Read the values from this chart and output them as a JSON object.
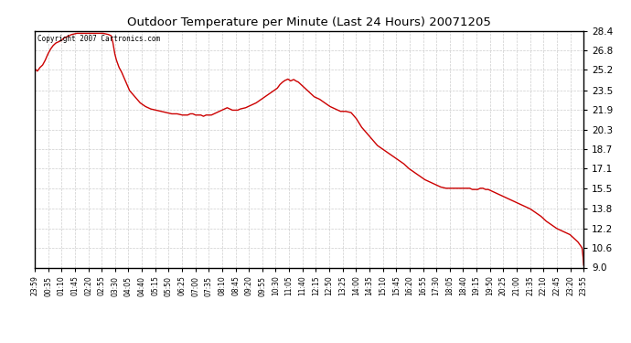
{
  "title": "Outdoor Temperature per Minute (Last 24 Hours) 20071205",
  "copyright_text": "Copyright 2007 Cartronics.com",
  "line_color": "#cc0000",
  "background_color": "#ffffff",
  "grid_color": "#c8c8c8",
  "ylim": [
    9.0,
    28.4
  ],
  "yticks": [
    9.0,
    10.6,
    12.2,
    13.8,
    15.5,
    17.1,
    18.7,
    20.3,
    21.9,
    23.5,
    25.2,
    26.8,
    28.4
  ],
  "xtick_labels": [
    "23:59",
    "00:35",
    "01:10",
    "01:45",
    "02:20",
    "02:55",
    "03:30",
    "04:05",
    "04:40",
    "05:15",
    "05:50",
    "06:25",
    "07:00",
    "07:35",
    "08:10",
    "08:45",
    "09:20",
    "09:55",
    "10:30",
    "11:05",
    "11:40",
    "12:15",
    "12:50",
    "13:25",
    "14:00",
    "14:35",
    "15:10",
    "15:45",
    "16:20",
    "16:55",
    "17:30",
    "18:05",
    "18:40",
    "19:15",
    "19:50",
    "20:25",
    "21:00",
    "21:35",
    "22:10",
    "22:45",
    "23:20",
    "23:55"
  ],
  "curve_data": [
    [
      0,
      25.3
    ],
    [
      5,
      25.1
    ],
    [
      10,
      25.4
    ],
    [
      15,
      25.6
    ],
    [
      20,
      26.0
    ],
    [
      25,
      26.5
    ],
    [
      30,
      26.9
    ],
    [
      35,
      27.2
    ],
    [
      40,
      27.4
    ],
    [
      45,
      27.5
    ],
    [
      50,
      27.6
    ],
    [
      55,
      27.8
    ],
    [
      60,
      27.9
    ],
    [
      65,
      28.0
    ],
    [
      70,
      28.1
    ],
    [
      80,
      28.2
    ],
    [
      90,
      28.2
    ],
    [
      100,
      28.2
    ],
    [
      110,
      28.2
    ],
    [
      120,
      28.2
    ],
    [
      130,
      28.2
    ],
    [
      140,
      28.1
    ],
    [
      145,
      28.0
    ],
    [
      148,
      27.5
    ],
    [
      150,
      27.0
    ],
    [
      152,
      26.5
    ],
    [
      155,
      26.0
    ],
    [
      160,
      25.4
    ],
    [
      165,
      25.0
    ],
    [
      170,
      24.5
    ],
    [
      175,
      24.0
    ],
    [
      180,
      23.5
    ],
    [
      190,
      23.0
    ],
    [
      200,
      22.5
    ],
    [
      210,
      22.2
    ],
    [
      220,
      22.0
    ],
    [
      230,
      21.9
    ],
    [
      240,
      21.8
    ],
    [
      250,
      21.7
    ],
    [
      260,
      21.6
    ],
    [
      270,
      21.6
    ],
    [
      280,
      21.5
    ],
    [
      285,
      21.5
    ],
    [
      290,
      21.5
    ],
    [
      295,
      21.6
    ],
    [
      300,
      21.6
    ],
    [
      305,
      21.5
    ],
    [
      310,
      21.5
    ],
    [
      315,
      21.5
    ],
    [
      320,
      21.4
    ],
    [
      325,
      21.5
    ],
    [
      330,
      21.5
    ],
    [
      335,
      21.5
    ],
    [
      340,
      21.6
    ],
    [
      345,
      21.7
    ],
    [
      350,
      21.8
    ],
    [
      355,
      21.9
    ],
    [
      360,
      22.0
    ],
    [
      365,
      22.1
    ],
    [
      370,
      22.0
    ],
    [
      375,
      21.9
    ],
    [
      380,
      21.9
    ],
    [
      385,
      21.9
    ],
    [
      390,
      22.0
    ],
    [
      400,
      22.1
    ],
    [
      410,
      22.3
    ],
    [
      420,
      22.5
    ],
    [
      430,
      22.8
    ],
    [
      440,
      23.1
    ],
    [
      450,
      23.4
    ],
    [
      460,
      23.7
    ],
    [
      465,
      24.0
    ],
    [
      470,
      24.2
    ],
    [
      475,
      24.35
    ],
    [
      478,
      24.4
    ],
    [
      480,
      24.45
    ],
    [
      482,
      24.4
    ],
    [
      485,
      24.3
    ],
    [
      488,
      24.35
    ],
    [
      490,
      24.4
    ],
    [
      492,
      24.4
    ],
    [
      495,
      24.3
    ],
    [
      500,
      24.2
    ],
    [
      505,
      24.0
    ],
    [
      510,
      23.8
    ],
    [
      515,
      23.6
    ],
    [
      520,
      23.4
    ],
    [
      525,
      23.2
    ],
    [
      530,
      23.0
    ],
    [
      540,
      22.8
    ],
    [
      550,
      22.5
    ],
    [
      560,
      22.2
    ],
    [
      570,
      22.0
    ],
    [
      580,
      21.8
    ],
    [
      590,
      21.8
    ],
    [
      600,
      21.7
    ],
    [
      610,
      21.2
    ],
    [
      620,
      20.5
    ],
    [
      630,
      20.0
    ],
    [
      640,
      19.5
    ],
    [
      650,
      19.0
    ],
    [
      660,
      18.7
    ],
    [
      670,
      18.4
    ],
    [
      680,
      18.1
    ],
    [
      690,
      17.8
    ],
    [
      700,
      17.5
    ],
    [
      710,
      17.1
    ],
    [
      720,
      16.8
    ],
    [
      730,
      16.5
    ],
    [
      740,
      16.2
    ],
    [
      750,
      16.0
    ],
    [
      760,
      15.8
    ],
    [
      770,
      15.6
    ],
    [
      780,
      15.5
    ],
    [
      790,
      15.5
    ],
    [
      800,
      15.5
    ],
    [
      810,
      15.5
    ],
    [
      815,
      15.5
    ],
    [
      820,
      15.5
    ],
    [
      825,
      15.5
    ],
    [
      830,
      15.4
    ],
    [
      840,
      15.4
    ],
    [
      845,
      15.5
    ],
    [
      850,
      15.5
    ],
    [
      855,
      15.4
    ],
    [
      860,
      15.4
    ],
    [
      865,
      15.3
    ],
    [
      870,
      15.2
    ],
    [
      880,
      15.0
    ],
    [
      890,
      14.8
    ],
    [
      900,
      14.6
    ],
    [
      910,
      14.4
    ],
    [
      920,
      14.2
    ],
    [
      930,
      14.0
    ],
    [
      940,
      13.8
    ],
    [
      950,
      13.5
    ],
    [
      960,
      13.2
    ],
    [
      970,
      12.8
    ],
    [
      980,
      12.5
    ],
    [
      990,
      12.2
    ],
    [
      1000,
      12.0
    ],
    [
      1010,
      11.8
    ],
    [
      1015,
      11.7
    ],
    [
      1020,
      11.5
    ],
    [
      1025,
      11.3
    ],
    [
      1030,
      11.1
    ],
    [
      1035,
      10.8
    ],
    [
      1038,
      10.6
    ],
    [
      1040,
      9.8
    ],
    [
      1041,
      9.2
    ]
  ]
}
